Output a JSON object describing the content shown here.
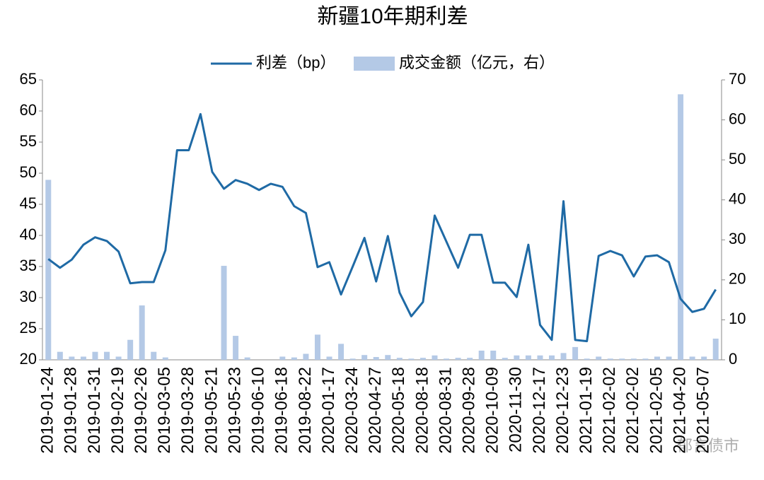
{
  "chart_data": {
    "type": "bar-line",
    "title": "新疆10年期利差",
    "watermark": "郁言债市",
    "categories": [
      "2019-01-24",
      null,
      "2019-01-28",
      null,
      "2019-01-31",
      null,
      "2019-02-19",
      null,
      "2019-02-26",
      null,
      "2019-03-05",
      null,
      "2019-03-28",
      null,
      "2019-05-21",
      null,
      "2019-05-23",
      null,
      "2019-06-10",
      null,
      "2019-06-18",
      null,
      "2019-08-22",
      null,
      "2020-01-17",
      null,
      "2020-03-24",
      null,
      "2020-04-27",
      null,
      "2020-05-18",
      null,
      "2020-08-18",
      null,
      "2020-08-31",
      null,
      "2020-09-28",
      null,
      "2020-10-09",
      null,
      "2020-11-30",
      null,
      "2020-12-17",
      null,
      "2020-12-23",
      null,
      "2021-01-19",
      null,
      "2021-02-02",
      null,
      "2021-02-02",
      null,
      "2021-02-05",
      null,
      "2021-04-20",
      null,
      "2021-05-07",
      null
    ],
    "series": [
      {
        "name": "利差（bp）",
        "type": "line",
        "color": "#1f6aa5",
        "values": [
          36.2,
          34.8,
          36.1,
          38.5,
          39.7,
          39.1,
          37.4,
          32.3,
          32.5,
          32.5,
          37.6,
          53.7,
          53.7,
          59.5,
          50.2,
          47.5,
          48.9,
          48.3,
          47.3,
          48.3,
          47.8,
          44.7,
          43.6,
          34.9,
          35.7,
          30.5,
          35,
          39.6,
          32.6,
          39.9,
          30.8,
          27,
          29.3,
          43.2,
          39,
          34.8,
          40.1,
          40.1,
          32.4,
          32.4,
          30.1,
          38.5,
          25.6,
          23.2,
          45.5,
          23.2,
          23,
          36.7,
          37.5,
          36.8,
          33.4,
          36.6,
          36.8,
          35.7,
          29.8,
          27.7,
          28.2,
          31.3
        ]
      },
      {
        "name": "成交金额（亿元，右）",
        "type": "bar",
        "axis": "y2",
        "color": "#b4c9e6",
        "values": [
          45,
          2,
          0.8,
          0.8,
          2,
          2,
          0.8,
          5,
          13.6,
          2,
          0.6,
          0,
          0,
          0,
          0,
          23.5,
          6,
          0.6,
          0,
          0,
          0.8,
          0.6,
          1.5,
          6.3,
          0.8,
          4,
          0.3,
          1.2,
          0.7,
          1.2,
          0.5,
          0.3,
          0.5,
          1.1,
          0.3,
          0.5,
          0.5,
          2.3,
          2.3,
          0.5,
          1.1,
          1.1,
          1.1,
          1.1,
          1.7,
          3.2,
          0.3,
          0.8,
          0.3,
          0.3,
          0.3,
          0.3,
          0.8,
          0.8,
          66.4,
          0.8,
          0.8,
          5.3
        ]
      }
    ],
    "ylim": [
      20,
      65
    ],
    "yticks": [
      20,
      25,
      30,
      35,
      40,
      45,
      50,
      55,
      60,
      65
    ],
    "y2lim": [
      0,
      70
    ],
    "y2ticks": [
      0,
      10,
      20,
      30,
      40,
      50,
      60,
      70
    ],
    "legend": "top"
  }
}
